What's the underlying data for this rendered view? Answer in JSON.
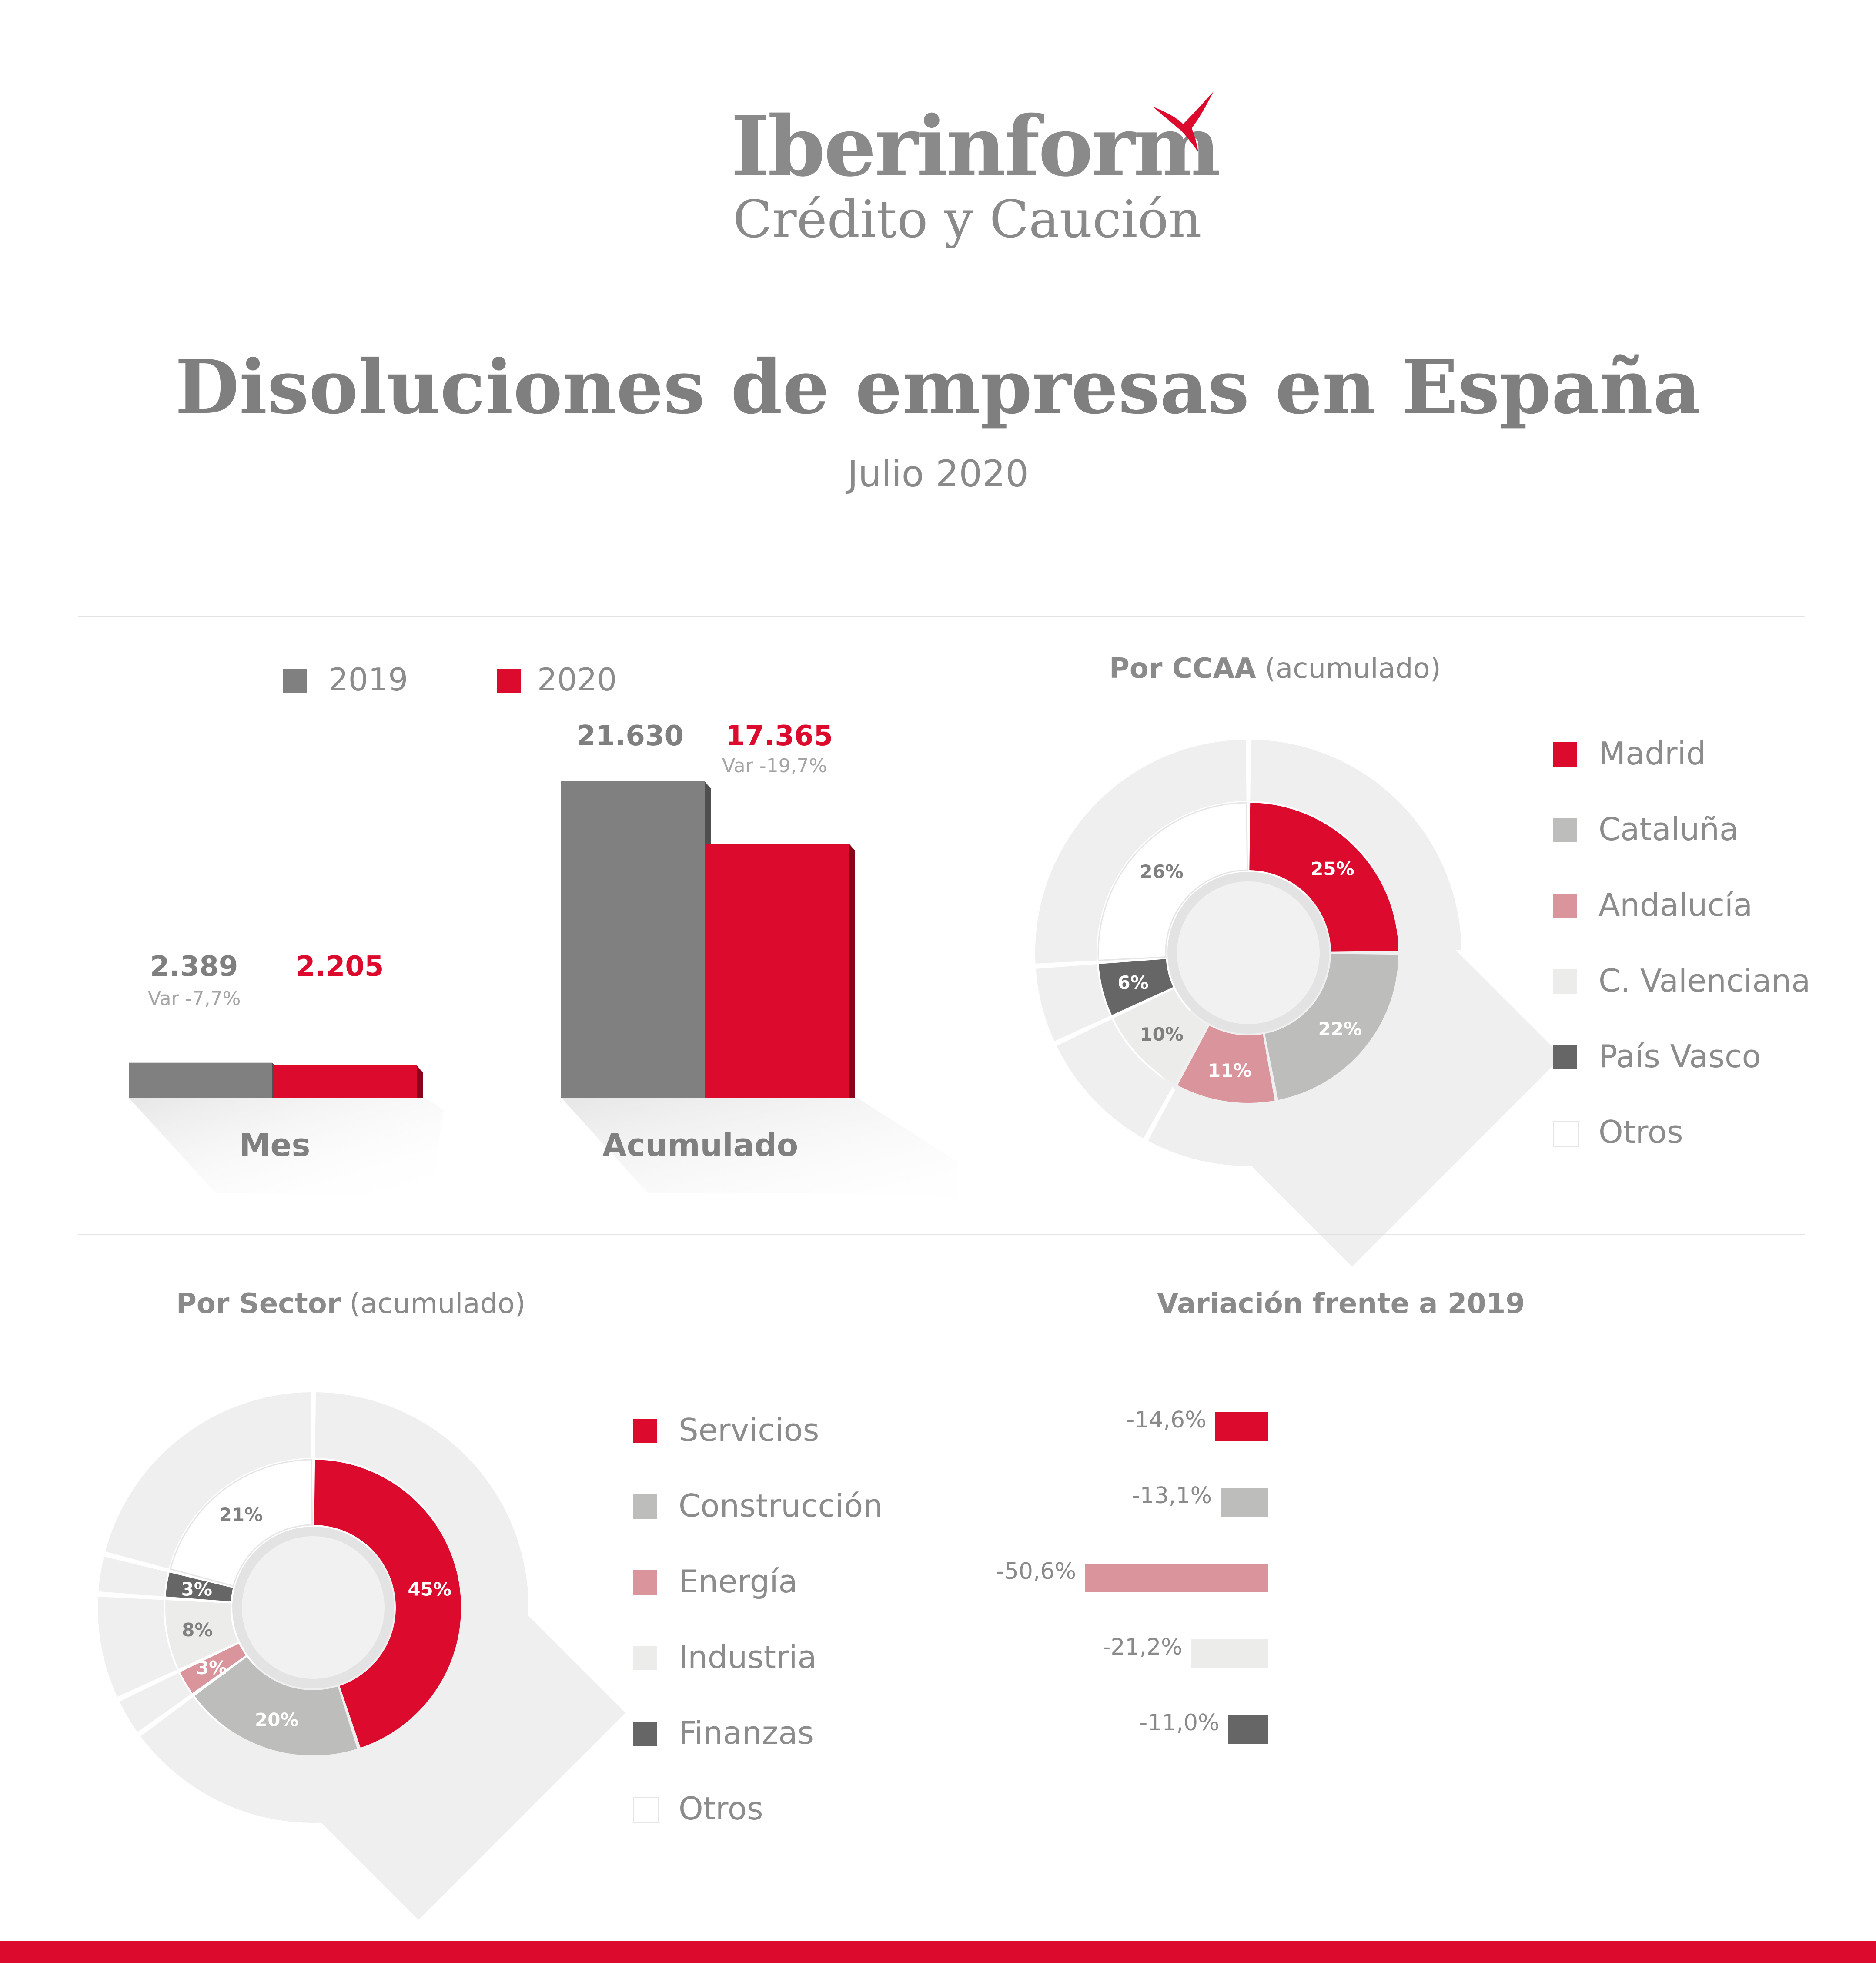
{
  "logo": {
    "name": "Iberinform",
    "tagline": "Crédito y Caución",
    "accent": "#dc0a2c"
  },
  "title": "Disoluciones de empresas en España",
  "subtitle": "Julio 2020",
  "colors": {
    "red": "#dc0a2c",
    "grey_dark_bar": "#808080",
    "grey_text": "#7f7f7f",
    "cataluna": "#bdbdbb",
    "andalucia": "#d9959b",
    "valenciana": "#ececea",
    "pais_vasco": "#666666",
    "otros": "#ffffff",
    "ring_bg": "#f0f0f0"
  },
  "chart_data": [
    {
      "type": "bar",
      "legend": [
        {
          "name": "2019",
          "color": "#808080"
        },
        {
          "name": "2020",
          "color": "#dc0a2c"
        }
      ],
      "categories": [
        "Mes",
        "Acumulado"
      ],
      "series": [
        {
          "name": "2019",
          "values": [
            2389,
            21630
          ],
          "labels": [
            "2.389",
            "21.630"
          ]
        },
        {
          "name": "2020",
          "values": [
            2205,
            17365
          ],
          "labels": [
            "2.205",
            "17.365"
          ]
        }
      ],
      "annotations": [
        "Var -7,7%",
        "Var -19,7%"
      ],
      "ylim": [
        0,
        21630
      ]
    },
    {
      "type": "pie",
      "title_bold": "Por CCAA",
      "title_rest": "(acumulado)",
      "slices": [
        {
          "label": "Madrid",
          "value": 25,
          "text": "25%",
          "color": "#dc0a2c",
          "text_color": "#ffffff"
        },
        {
          "label": "Cataluña",
          "value": 22,
          "text": "22%",
          "color": "#bdbdbb",
          "text_color": "#ffffff"
        },
        {
          "label": "Andalucía",
          "value": 11,
          "text": "11%",
          "color": "#d9959b",
          "text_color": "#ffffff"
        },
        {
          "label": "C. Valenciana",
          "value": 10,
          "text": "10%",
          "color": "#ececea",
          "text_color": "#808080"
        },
        {
          "label": "País Vasco",
          "value": 6,
          "text": "6%",
          "color": "#666666",
          "text_color": "#ffffff"
        },
        {
          "label": "Otros",
          "value": 26,
          "text": "26%",
          "color": "#ffffff",
          "text_color": "#808080"
        }
      ]
    },
    {
      "type": "pie",
      "title_bold": "Por Sector",
      "title_rest": "(acumulado)",
      "slices": [
        {
          "label": "Servicios",
          "value": 45,
          "text": "45%",
          "color": "#dc0a2c",
          "text_color": "#ffffff"
        },
        {
          "label": "Construcción",
          "value": 20,
          "text": "20%",
          "color": "#bdbdbb",
          "text_color": "#ffffff"
        },
        {
          "label": "Energía",
          "value": 3,
          "text": "3%",
          "color": "#d9959b",
          "text_color": "#ffffff"
        },
        {
          "label": "Industria",
          "value": 8,
          "text": "8%",
          "color": "#ececea",
          "text_color": "#808080"
        },
        {
          "label": "Finanzas",
          "value": 3,
          "text": "3%",
          "color": "#666666",
          "text_color": "#ffffff"
        },
        {
          "label": "Otros",
          "value": 21,
          "text": "21%",
          "color": "#ffffff",
          "text_color": "#808080"
        }
      ]
    },
    {
      "type": "bar",
      "orientation": "horizontal",
      "title": "Variación frente a 2019",
      "categories": [
        "Servicios",
        "Construcción",
        "Energía",
        "Industria",
        "Finanzas"
      ],
      "values": [
        -14.6,
        -13.1,
        -50.6,
        -21.2,
        -11.0
      ],
      "labels": [
        "-14,6%",
        "-13,1%",
        "-50,6%",
        "-21,2%",
        "-11,0%"
      ],
      "colors": [
        "#dc0a2c",
        "#bdbdbb",
        "#d9959b",
        "#ececea",
        "#666666"
      ]
    }
  ]
}
